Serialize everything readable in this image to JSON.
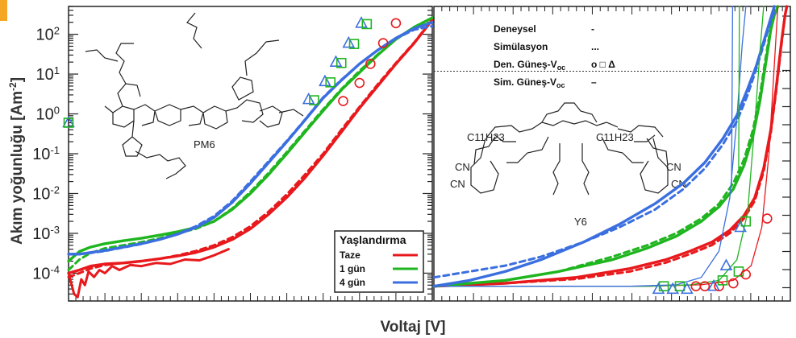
{
  "figure": {
    "ylabel": "Akım yoğunluğu [Am",
    "ylabel_sup": "-2",
    "ylabel_end": "]",
    "xlabel": "Voltaj [V]"
  },
  "colors": {
    "taze": "#e8191c",
    "gun1": "#1fb51f",
    "gun4": "#3b6fe0"
  },
  "chart_data": [
    {
      "type": "line",
      "panel": "left",
      "molecule_label": "PM6",
      "yscale": "log",
      "ylim": [
        2e-05,
        500
      ],
      "xlim": [
        0,
        1
      ],
      "y_tick_labels": [
        {
          "value": 100,
          "base": "10",
          "exp": "2"
        },
        {
          "value": 10,
          "base": "10",
          "exp": "1"
        },
        {
          "value": 1,
          "base": "10",
          "exp": "0"
        },
        {
          "value": 0.1,
          "base": "10",
          "exp": "-1"
        },
        {
          "value": 0.01,
          "base": "10",
          "exp": "-2"
        },
        {
          "value": 0.001,
          "base": "10",
          "exp": "-3"
        },
        {
          "value": 0.0001,
          "base": "10",
          "exp": "-4"
        }
      ],
      "legend": {
        "title": "Yaşlandırma",
        "entries": [
          {
            "label": "Taze",
            "color": "#e8191c"
          },
          {
            "label": "1 gün",
            "color": "#1fb51f"
          },
          {
            "label": "4 gün",
            "color": "#3b6fe0"
          }
        ]
      },
      "series": [
        {
          "name": "Taze",
          "style": "solid",
          "color": "#e8191c",
          "x": [
            0,
            0.03,
            0.06,
            0.1,
            0.15,
            0.2,
            0.25,
            0.3,
            0.35,
            0.4,
            0.45,
            0.5,
            0.55,
            0.6,
            0.65,
            0.7,
            0.75,
            0.8,
            0.85,
            0.9,
            0.95,
            1.0
          ],
          "y": [
            0.0001,
            0.00012,
            0.00015,
            0.00017,
            0.00018,
            0.0002,
            0.00023,
            0.00027,
            0.00033,
            0.00045,
            0.0007,
            0.0013,
            0.003,
            0.008,
            0.025,
            0.09,
            0.35,
            1.4,
            5,
            18,
            60,
            230
          ]
        },
        {
          "name": "Taze",
          "style": "dashed",
          "color": "#e8191c",
          "x": [
            0,
            0.03,
            0.06,
            0.1,
            0.15,
            0.2,
            0.25,
            0.3,
            0.35,
            0.4,
            0.45,
            0.5,
            0.55,
            0.6,
            0.65,
            0.7,
            0.75,
            0.8,
            0.85,
            0.9,
            0.95,
            1.0
          ],
          "y": [
            8e-05,
            0.0001,
            0.00013,
            0.00016,
            0.00018,
            0.0002,
            0.00023,
            0.00028,
            0.00036,
            0.0005,
            0.0008,
            0.0015,
            0.0035,
            0.0095,
            0.03,
            0.1,
            0.4,
            1.5,
            5.5,
            19,
            62,
            235
          ]
        },
        {
          "name": "Taze",
          "style": "noisy",
          "color": "#e8191c",
          "x": [
            0,
            0.015,
            0.025,
            0.035,
            0.045,
            0.055,
            0.07,
            0.085,
            0.1,
            0.12,
            0.14,
            0.17,
            0.2,
            0.24,
            0.28,
            0.32,
            0.36,
            0.4,
            0.44
          ],
          "y": [
            0.0001,
            3e-05,
            2.5e-05,
            7e-05,
            5e-05,
            0.00011,
            8e-05,
            0.00012,
            0.0001,
            0.00015,
            0.00012,
            0.00016,
            0.00015,
            0.00018,
            0.00017,
            0.00022,
            0.00021,
            0.00028,
            0.0004
          ]
        },
        {
          "name": "1 gün",
          "style": "solid",
          "color": "#1fb51f",
          "x": [
            0,
            0.03,
            0.06,
            0.1,
            0.15,
            0.2,
            0.25,
            0.3,
            0.35,
            0.4,
            0.45,
            0.5,
            0.55,
            0.6,
            0.65,
            0.7,
            0.75,
            0.8,
            0.85,
            0.9,
            0.95,
            1.0
          ],
          "y": [
            0.0002,
            0.00035,
            0.00045,
            0.00055,
            0.00065,
            0.00075,
            0.0009,
            0.0011,
            0.0014,
            0.002,
            0.004,
            0.01,
            0.03,
            0.1,
            0.35,
            1.2,
            4,
            11,
            30,
            75,
            150,
            260
          ]
        },
        {
          "name": "1 gün",
          "style": "dashed",
          "color": "#1fb51f",
          "x": [
            0,
            0.03,
            0.06,
            0.1,
            0.15,
            0.2,
            0.25,
            0.3,
            0.35,
            0.4,
            0.45,
            0.5,
            0.55,
            0.6,
            0.65,
            0.7,
            0.75,
            0.8,
            0.85,
            0.9,
            0.95,
            1.0
          ],
          "y": [
            0.00012,
            0.00022,
            0.00032,
            0.00042,
            0.0005,
            0.0006,
            0.00075,
            0.001,
            0.0013,
            0.002,
            0.0042,
            0.011,
            0.033,
            0.11,
            0.38,
            1.3,
            4.2,
            12,
            31,
            76,
            152,
            262
          ]
        },
        {
          "name": "4 gün",
          "style": "solid",
          "color": "#3b6fe0",
          "x": [
            0,
            0.03,
            0.06,
            0.1,
            0.15,
            0.2,
            0.25,
            0.3,
            0.35,
            0.4,
            0.45,
            0.5,
            0.55,
            0.6,
            0.65,
            0.7,
            0.75,
            0.8,
            0.85,
            0.9,
            0.95,
            1.0
          ],
          "y": [
            0.0003,
            0.0003,
            0.00033,
            0.00037,
            0.00045,
            0.00055,
            0.0007,
            0.00095,
            0.0014,
            0.0025,
            0.006,
            0.018,
            0.06,
            0.2,
            0.7,
            2.5,
            7,
            18,
            40,
            80,
            140,
            200
          ]
        },
        {
          "name": "4 gün",
          "style": "dashed",
          "color": "#3b6fe0",
          "x": [
            0,
            0.03,
            0.06,
            0.1,
            0.15,
            0.2,
            0.25,
            0.3,
            0.35,
            0.4,
            0.45,
            0.5,
            0.55,
            0.6,
            0.65,
            0.7,
            0.75,
            0.8,
            0.85,
            0.9,
            0.95,
            1.0
          ],
          "y": [
            0.0003,
            0.0003,
            0.00032,
            0.00036,
            0.00044,
            0.00054,
            0.0007,
            0.00097,
            0.0015,
            0.0027,
            0.0065,
            0.02,
            0.065,
            0.21,
            0.72,
            2.6,
            7.2,
            18,
            40,
            78,
            130,
            160
          ]
        }
      ],
      "markers": [
        {
          "shape": "triangle",
          "color": "#3b6fe0",
          "x": 0.0,
          "y": 0.6
        },
        {
          "shape": "square",
          "color": "#1fb51f",
          "x": 0.0,
          "y": 0.6
        },
        {
          "shape": "triangle",
          "color": "#3b6fe0",
          "x": 0.66,
          "y": 2.3
        },
        {
          "shape": "square",
          "color": "#1fb51f",
          "x": 0.675,
          "y": 2.2
        },
        {
          "shape": "triangle",
          "color": "#3b6fe0",
          "x": 0.705,
          "y": 6.5
        },
        {
          "shape": "square",
          "color": "#1fb51f",
          "x": 0.72,
          "y": 6.2
        },
        {
          "shape": "triangle",
          "color": "#3b6fe0",
          "x": 0.735,
          "y": 20
        },
        {
          "shape": "square",
          "color": "#1fb51f",
          "x": 0.75,
          "y": 19
        },
        {
          "shape": "triangle",
          "color": "#3b6fe0",
          "x": 0.77,
          "y": 60
        },
        {
          "shape": "square",
          "color": "#1fb51f",
          "x": 0.785,
          "y": 57
        },
        {
          "shape": "triangle",
          "color": "#3b6fe0",
          "x": 0.805,
          "y": 190
        },
        {
          "shape": "square",
          "color": "#1fb51f",
          "x": 0.82,
          "y": 180
        },
        {
          "shape": "circle",
          "color": "#e8191c",
          "x": 0.755,
          "y": 2.1
        },
        {
          "shape": "circle",
          "color": "#e8191c",
          "x": 0.8,
          "y": 6
        },
        {
          "shape": "circle",
          "color": "#e8191c",
          "x": 0.83,
          "y": 18
        },
        {
          "shape": "circle",
          "color": "#e8191c",
          "x": 0.865,
          "y": 60
        },
        {
          "shape": "circle",
          "color": "#e8191c",
          "x": 0.9,
          "y": 190
        }
      ]
    },
    {
      "type": "line",
      "panel": "right",
      "molecule_label": "Y6",
      "molecule_substituents": [
        "C11H23",
        "C11H23",
        "CN",
        "CN",
        "CN",
        "CN"
      ],
      "ylim": [
        0,
        1
      ],
      "xlim": [
        0,
        1
      ],
      "legend": {
        "entries": [
          {
            "label": "Deneysel",
            "symbol": "-"
          },
          {
            "label": "Simülasyon",
            "symbol": "..."
          },
          {
            "label": "Den. Güneş-V",
            "sub": "oc",
            "symbol": "o □ Δ"
          },
          {
            "label": "Sim. Güneş-V",
            "sub": "oc",
            "symbol": "–"
          }
        ]
      },
      "reference_line_y": 0.78,
      "series": [
        {
          "name": "Taze",
          "style": "solid",
          "color": "#e8191c",
          "x": [
            0,
            0.2,
            0.4,
            0.55,
            0.65,
            0.72,
            0.78,
            0.83,
            0.87,
            0.9,
            0.925,
            0.945,
            0.96,
            0.975,
            0.985,
            0.99
          ],
          "y": [
            0.05,
            0.06,
            0.08,
            0.11,
            0.14,
            0.17,
            0.2,
            0.24,
            0.29,
            0.35,
            0.45,
            0.58,
            0.72,
            0.88,
            0.97,
            1.0
          ]
        },
        {
          "name": "Taze",
          "style": "dashed",
          "color": "#e8191c",
          "x": [
            0,
            0.2,
            0.4,
            0.55,
            0.65,
            0.72,
            0.78,
            0.83,
            0.87,
            0.9,
            0.925,
            0.945,
            0.96,
            0.975,
            0.985
          ],
          "y": [
            0.05,
            0.06,
            0.075,
            0.1,
            0.13,
            0.16,
            0.19,
            0.23,
            0.28,
            0.34,
            0.44,
            0.57,
            0.71,
            0.87,
            0.97
          ]
        },
        {
          "name": "1 gün",
          "style": "solid",
          "color": "#1fb51f",
          "x": [
            0,
            0.2,
            0.35,
            0.5,
            0.6,
            0.68,
            0.75,
            0.8,
            0.84,
            0.87,
            0.895,
            0.915,
            0.93,
            0.945,
            0.955,
            0.965
          ],
          "y": [
            0.05,
            0.07,
            0.1,
            0.14,
            0.18,
            0.22,
            0.27,
            0.32,
            0.38,
            0.46,
            0.56,
            0.68,
            0.8,
            0.92,
            0.97,
            1.0
          ]
        },
        {
          "name": "1 gün",
          "style": "dashed",
          "color": "#1fb51f",
          "x": [
            0,
            0.2,
            0.35,
            0.5,
            0.6,
            0.68,
            0.75,
            0.8,
            0.84,
            0.87,
            0.895,
            0.915,
            0.93,
            0.945,
            0.955
          ],
          "y": [
            0.05,
            0.07,
            0.1,
            0.15,
            0.19,
            0.23,
            0.28,
            0.33,
            0.4,
            0.48,
            0.58,
            0.7,
            0.82,
            0.93,
            0.98
          ]
        },
        {
          "name": "4 gün",
          "style": "solid",
          "color": "#3b6fe0",
          "x": [
            0,
            0.1,
            0.2,
            0.3,
            0.42,
            0.52,
            0.62,
            0.7,
            0.76,
            0.81,
            0.85,
            0.88,
            0.905,
            0.925,
            0.94,
            0.955
          ],
          "y": [
            0.05,
            0.07,
            0.1,
            0.14,
            0.2,
            0.26,
            0.33,
            0.4,
            0.47,
            0.55,
            0.63,
            0.72,
            0.8,
            0.88,
            0.94,
            1.0
          ]
        },
        {
          "name": "4 gün",
          "style": "dashed",
          "color": "#3b6fe0",
          "x": [
            0,
            0.1,
            0.2,
            0.3,
            0.42,
            0.52,
            0.62,
            0.7,
            0.76,
            0.81,
            0.85,
            0.88,
            0.905,
            0.925,
            0.94,
            0.955
          ],
          "y": [
            0.08,
            0.1,
            0.12,
            0.15,
            0.2,
            0.25,
            0.31,
            0.38,
            0.45,
            0.53,
            0.61,
            0.7,
            0.79,
            0.87,
            0.93,
            0.98
          ]
        },
        {
          "name": "Taze",
          "style": "thin",
          "color": "#e8191c",
          "x": [
            0,
            0.6,
            0.75,
            0.84,
            0.89,
            0.92,
            0.94,
            0.955,
            0.965
          ],
          "y": [
            0.05,
            0.05,
            0.055,
            0.07,
            0.12,
            0.25,
            0.5,
            0.8,
            1.0
          ]
        },
        {
          "name": "1 gün",
          "style": "thin",
          "color": "#1fb51f",
          "x": [
            0,
            0.6,
            0.72,
            0.8,
            0.85,
            0.88,
            0.9,
            0.915,
            0.925
          ],
          "y": [
            0.05,
            0.05,
            0.055,
            0.07,
            0.14,
            0.3,
            0.6,
            0.85,
            1.0
          ]
        },
        {
          "name": "4 gün",
          "style": "thin",
          "color": "#3b6fe0",
          "x": [
            0,
            0.55,
            0.68,
            0.75,
            0.8,
            0.83,
            0.85,
            0.865,
            0.875
          ],
          "y": [
            0.05,
            0.05,
            0.055,
            0.08,
            0.17,
            0.35,
            0.62,
            0.87,
            1.0
          ]
        },
        {
          "name": "Sim",
          "style": "vertical",
          "color": "#3b6fe0",
          "x": [
            0.835,
            0.838
          ],
          "y": [
            0.4,
            1.0
          ]
        },
        {
          "name": "Sim",
          "style": "vertical",
          "color": "#1fb51f",
          "x": [
            0.855,
            0.857
          ],
          "y": [
            0.45,
            1.0
          ]
        }
      ],
      "markers": [
        {
          "shape": "triangle",
          "color": "#3b6fe0",
          "x": 0.63,
          "y": 0.04
        },
        {
          "shape": "square",
          "color": "#1fb51f",
          "x": 0.645,
          "y": 0.05
        },
        {
          "shape": "triangle",
          "color": "#3b6fe0",
          "x": 0.67,
          "y": 0.04
        },
        {
          "shape": "square",
          "color": "#1fb51f",
          "x": 0.69,
          "y": 0.05
        },
        {
          "shape": "triangle",
          "color": "#3b6fe0",
          "x": 0.71,
          "y": 0.04
        },
        {
          "shape": "circle",
          "color": "#e8191c",
          "x": 0.735,
          "y": 0.05
        },
        {
          "shape": "circle",
          "color": "#e8191c",
          "x": 0.76,
          "y": 0.05
        },
        {
          "shape": "triangle",
          "color": "#3b6fe0",
          "x": 0.785,
          "y": 0.05
        },
        {
          "shape": "circle",
          "color": "#e8191c",
          "x": 0.8,
          "y": 0.05
        },
        {
          "shape": "square",
          "color": "#1fb51f",
          "x": 0.81,
          "y": 0.07
        },
        {
          "shape": "circle",
          "color": "#e8191c",
          "x": 0.84,
          "y": 0.06
        },
        {
          "shape": "triangle",
          "color": "#3b6fe0",
          "x": 0.82,
          "y": 0.12
        },
        {
          "shape": "square",
          "color": "#1fb51f",
          "x": 0.855,
          "y": 0.1
        },
        {
          "shape": "circle",
          "color": "#e8191c",
          "x": 0.875,
          "y": 0.09
        },
        {
          "shape": "triangle",
          "color": "#3b6fe0",
          "x": 0.86,
          "y": 0.25
        },
        {
          "shape": "square",
          "color": "#1fb51f",
          "x": 0.875,
          "y": 0.27
        },
        {
          "shape": "circle",
          "color": "#e8191c",
          "x": 0.935,
          "y": 0.28
        }
      ]
    }
  ]
}
